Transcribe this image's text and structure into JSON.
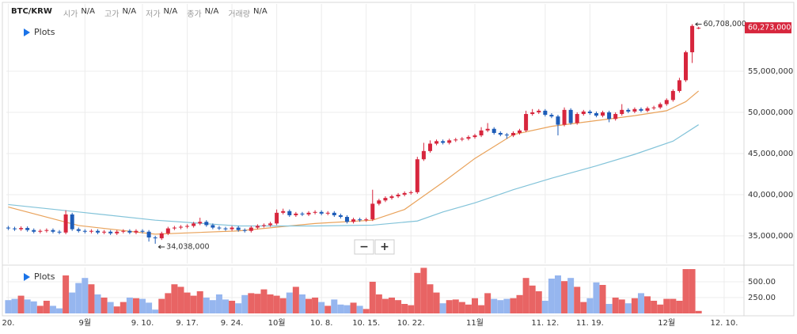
{
  "chart_data": [
    {
      "type": "candlestick",
      "title": "BTC/KRW",
      "info": [
        {
          "label": "시가",
          "value": "N/A"
        },
        {
          "label": "고가",
          "value": "N/A"
        },
        {
          "label": "저가",
          "value": "N/A"
        },
        {
          "label": "종가",
          "value": "N/A"
        },
        {
          "label": "거래량",
          "value": "N/A"
        }
      ],
      "legend_label": "Plots",
      "zoom_buttons": [
        "−",
        "+"
      ],
      "up_color": "#d7263d",
      "down_color": "#1d5cb8",
      "x": [
        0,
        1,
        2,
        3,
        4,
        5,
        6,
        7,
        8,
        9,
        10,
        11,
        12,
        13,
        14,
        15,
        16,
        17,
        18,
        19,
        20,
        21,
        22,
        23,
        24,
        25,
        26,
        27,
        28,
        29,
        30,
        31,
        32,
        33,
        34,
        35,
        36,
        37,
        38,
        39,
        40,
        41,
        42,
        43,
        44,
        45,
        46,
        47,
        48,
        49,
        50,
        51,
        52,
        53,
        54,
        55,
        56,
        57,
        58,
        59,
        60,
        61,
        62,
        63,
        64,
        65,
        66,
        67,
        68,
        69,
        70,
        71,
        72,
        73,
        74,
        75,
        76,
        77,
        78,
        79,
        80,
        81,
        82,
        83,
        84,
        85,
        86,
        87,
        88,
        89,
        90,
        91,
        92,
        93,
        94,
        95,
        96,
        97,
        98,
        99,
        100,
        101,
        102,
        103,
        104,
        105,
        106,
        107,
        108
      ],
      "open": [
        36000000,
        35900000,
        35800000,
        35950000,
        35700000,
        35500000,
        35600000,
        35700000,
        35500000,
        35400000,
        37600000,
        35800000,
        35600000,
        35500000,
        35600000,
        35400000,
        35500000,
        35300000,
        35500000,
        35600000,
        35400000,
        35600000,
        35500000,
        34800000,
        34700000,
        35300000,
        35900000,
        36000000,
        36100000,
        36200000,
        36500000,
        36700000,
        36300000,
        36000000,
        35900000,
        35800000,
        36000000,
        35700000,
        35600000,
        36000000,
        36200000,
        36300000,
        36500000,
        37800000,
        38000000,
        37500000,
        37700000,
        37600000,
        37800000,
        37900000,
        37700000,
        37800000,
        37500000,
        37300000,
        36700000,
        37000000,
        36900000,
        37000000,
        38900000,
        39300000,
        39600000,
        39800000,
        40000000,
        40200000,
        40300000,
        44300000,
        45300000,
        46200000,
        46500000,
        46300000,
        46600000,
        46700000,
        46800000,
        47000000,
        47200000,
        47800000,
        48000000,
        47500000,
        47300000,
        47200000,
        47500000,
        47800000,
        49800000,
        50000000,
        50200000,
        49700000,
        49500000,
        48500000,
        50300000,
        48700000,
        49800000,
        50100000,
        49900000,
        49600000,
        50000000,
        49200000,
        49800000,
        50300000,
        50100000,
        50400000,
        50200000,
        50500000,
        50600000,
        51000000,
        51500000,
        52600000,
        53900000,
        57300000,
        60200000
      ],
      "high": [
        36200000,
        36100000,
        36150000,
        36150000,
        35900000,
        35800000,
        35900000,
        35900000,
        35700000,
        38100000,
        37800000,
        36000000,
        35800000,
        35800000,
        35800000,
        35700000,
        35700000,
        35700000,
        35800000,
        35800000,
        35800000,
        35800000,
        35700000,
        35000000,
        35500000,
        36100000,
        36200000,
        36300000,
        36400000,
        36700000,
        37200000,
        36900000,
        36500000,
        36200000,
        36100000,
        36200000,
        36200000,
        35900000,
        36200000,
        36400000,
        36500000,
        36700000,
        38200000,
        38300000,
        38200000,
        37900000,
        37900000,
        38000000,
        38100000,
        38100000,
        38000000,
        38000000,
        37700000,
        37500000,
        37200000,
        37200000,
        37200000,
        40600000,
        39500000,
        39800000,
        40000000,
        40200000,
        40400000,
        40500000,
        44600000,
        46300000,
        46600000,
        46700000,
        46700000,
        46800000,
        46900000,
        47000000,
        47200000,
        47400000,
        48200000,
        48700000,
        48200000,
        47700000,
        47500000,
        47700000,
        48000000,
        50200000,
        50400000,
        50400000,
        50400000,
        49900000,
        49700000,
        50600000,
        50500000,
        50000000,
        50300000,
        50300000,
        50100000,
        50200000,
        50200000,
        50000000,
        51000000,
        50500000,
        50600000,
        50600000,
        50700000,
        50800000,
        51200000,
        51700000,
        52800000,
        54200000,
        57500000,
        60708000,
        60400000
      ],
      "low": [
        35700000,
        35600000,
        35600000,
        35500000,
        35300000,
        35300000,
        35400000,
        35300000,
        35200000,
        35200000,
        35600000,
        35400000,
        35300000,
        35300000,
        35200000,
        35200000,
        35100000,
        35100000,
        35300000,
        35200000,
        35200000,
        35300000,
        34300000,
        34038000,
        34500000,
        35100000,
        35700000,
        35800000,
        35900000,
        36000000,
        36300000,
        36100000,
        35800000,
        35700000,
        35600000,
        35600000,
        35500000,
        35400000,
        35400000,
        35800000,
        36000000,
        36100000,
        36300000,
        37600000,
        37300000,
        37300000,
        37400000,
        37400000,
        37600000,
        37500000,
        37500000,
        37300000,
        37100000,
        36500000,
        36500000,
        36700000,
        36700000,
        36800000,
        38700000,
        39100000,
        39400000,
        39600000,
        39800000,
        40000000,
        40100000,
        44100000,
        45100000,
        46000000,
        46100000,
        46100000,
        46400000,
        46500000,
        46600000,
        46800000,
        47000000,
        47600000,
        47300000,
        47100000,
        46800000,
        47000000,
        47300000,
        47600000,
        49600000,
        49800000,
        49500000,
        49300000,
        47200000,
        48300000,
        48500000,
        48500000,
        49600000,
        49700000,
        49400000,
        49400000,
        48800000,
        49000000,
        49600000,
        49900000,
        49900000,
        50000000,
        50000000,
        50300000,
        50400000,
        50800000,
        51300000,
        52400000,
        53700000,
        56000000,
        60100000
      ],
      "close": [
        35900000,
        35800000,
        35950000,
        35700000,
        35500000,
        35600000,
        35700000,
        35500000,
        35400000,
        37600000,
        35800000,
        35600000,
        35500000,
        35600000,
        35400000,
        35500000,
        35300000,
        35500000,
        35600000,
        35400000,
        35600000,
        35500000,
        34800000,
        34700000,
        35300000,
        35900000,
        36000000,
        36100000,
        36200000,
        36500000,
        36700000,
        36300000,
        36000000,
        35900000,
        35800000,
        36000000,
        35700000,
        35600000,
        36000000,
        36200000,
        36300000,
        36500000,
        37800000,
        38000000,
        37500000,
        37700000,
        37600000,
        37800000,
        37900000,
        37700000,
        37800000,
        37500000,
        37300000,
        36700000,
        37000000,
        36900000,
        37000000,
        38900000,
        39300000,
        39600000,
        39800000,
        40000000,
        40200000,
        40300000,
        44300000,
        45300000,
        46200000,
        46500000,
        46300000,
        46600000,
        46700000,
        46800000,
        47000000,
        47200000,
        47800000,
        48000000,
        47500000,
        47300000,
        47200000,
        47500000,
        47800000,
        49800000,
        50000000,
        50200000,
        49700000,
        49500000,
        48500000,
        50300000,
        48700000,
        49800000,
        50100000,
        49900000,
        49600000,
        50000000,
        49200000,
        49800000,
        50300000,
        50100000,
        50400000,
        50200000,
        50500000,
        50600000,
        51000000,
        51500000,
        52600000,
        53900000,
        57300000,
        60500000,
        60273000
      ],
      "lines": [
        {
          "color": "#e9a25a",
          "x": [
            0,
            11,
            23,
            36,
            48,
            57,
            62,
            68,
            73,
            79,
            85,
            92,
            98,
            103,
            106,
            108
          ],
          "values": [
            38500000,
            36250000,
            35200000,
            35600000,
            36500000,
            36900000,
            38200000,
            41500000,
            44400000,
            47300000,
            48300000,
            49000000,
            49600000,
            50200000,
            51300000,
            52600000
          ]
        },
        {
          "color": "#82c3d9",
          "x": [
            0,
            11,
            23,
            36,
            48,
            57,
            64,
            68,
            73,
            79,
            85,
            92,
            98,
            104,
            108
          ],
          "values": [
            38800000,
            37900000,
            36900000,
            36200000,
            36200000,
            36300000,
            36800000,
            37900000,
            39000000,
            40600000,
            42000000,
            43500000,
            44900000,
            46500000,
            48500000
          ]
        }
      ],
      "max_label": {
        "value": 60708000,
        "label": "60,708,000"
      },
      "min_label": {
        "value": 34038000,
        "label": "34,038,000"
      },
      "last_price": {
        "value": 60273000,
        "label": "60,273,000"
      },
      "ylim": [
        31630000,
        63170000
      ],
      "yticks": [
        {
          "value": 35000000,
          "label": "35,000,000"
        },
        {
          "value": 40000000,
          "label": "40,000,000"
        },
        {
          "value": 45000000,
          "label": "45,000,000"
        },
        {
          "value": 50000000,
          "label": "50,000,000"
        },
        {
          "value": 55000000,
          "label": "55,000,000"
        }
      ],
      "xlim": [
        -0.3,
        115.1
      ],
      "xticks": [
        {
          "value": 0,
          "label": "20."
        },
        {
          "value": 12,
          "label": "9월"
        },
        {
          "value": 21,
          "label": "9. 10."
        },
        {
          "value": 28,
          "label": "9. 17."
        },
        {
          "value": 35,
          "label": "9. 24."
        },
        {
          "value": 42,
          "label": "10월"
        },
        {
          "value": 49,
          "label": "10. 8."
        },
        {
          "value": 56,
          "label": "10. 15."
        },
        {
          "value": 63,
          "label": "10. 22."
        },
        {
          "value": 73,
          "label": "11월"
        },
        {
          "value": 84,
          "label": "11. 12."
        },
        {
          "value": 91,
          "label": "11. 19."
        },
        {
          "value": 103,
          "label": "12월"
        },
        {
          "value": 112,
          "label": "12. 10."
        }
      ],
      "grid": true
    },
    {
      "type": "bar",
      "legend_label": "Plots",
      "up_color": "#e86464",
      "down_color": "#96b6ef",
      "values": [
        210,
        230,
        280,
        220,
        190,
        120,
        200,
        120,
        80,
        600,
        330,
        480,
        560,
        460,
        300,
        250,
        180,
        110,
        180,
        250,
        240,
        230,
        170,
        60,
        230,
        320,
        460,
        420,
        330,
        280,
        350,
        250,
        210,
        300,
        220,
        200,
        160,
        290,
        320,
        310,
        380,
        300,
        280,
        240,
        330,
        420,
        300,
        230,
        250,
        180,
        120,
        220,
        140,
        130,
        170,
        120,
        70,
        500,
        300,
        230,
        250,
        210,
        150,
        130,
        640,
        720,
        460,
        330,
        160,
        210,
        220,
        180,
        140,
        240,
        130,
        320,
        230,
        210,
        230,
        240,
        290,
        560,
        440,
        350,
        200,
        550,
        600,
        510,
        560,
        420,
        180,
        240,
        490,
        450,
        150,
        250,
        220,
        160,
        240,
        320,
        270,
        200,
        140,
        230,
        230,
        200,
        700,
        700,
        40
      ],
      "ylim": [
        0,
        725
      ],
      "yticks": [
        {
          "value": 250,
          "label": "250.00"
        },
        {
          "value": 500,
          "label": "500.00"
        }
      ],
      "grid": true
    }
  ]
}
